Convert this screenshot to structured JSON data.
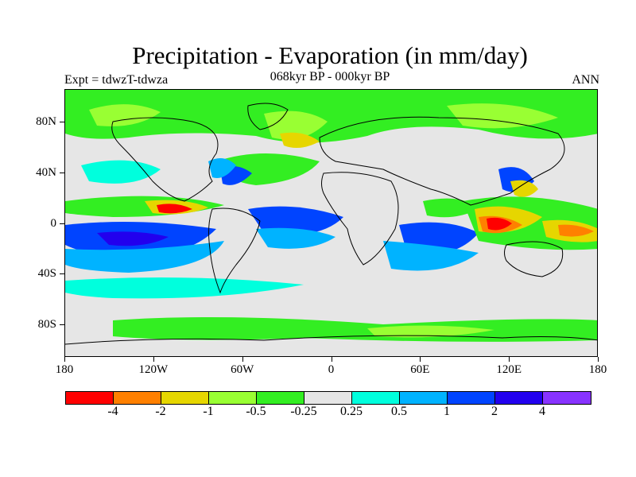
{
  "title": "Precipitation - Evaporation (in mm/day)",
  "subtitle": "068kyr BP - 000kyr BP",
  "experiment_label": "Expt = tdwzT-tdwza",
  "season": "ANN",
  "lat_axis": [
    {
      "text": "80N",
      "lat": 70
    },
    {
      "text": "40N",
      "lat": 35
    },
    {
      "text": "0",
      "lat": 0
    },
    {
      "text": "40S",
      "lat": -35
    },
    {
      "text": "80S",
      "lat": -70
    }
  ],
  "lon_axis": [
    {
      "text": "180",
      "lon": -180
    },
    {
      "text": "120W",
      "lon": -120
    },
    {
      "text": "60W",
      "lon": -60
    },
    {
      "text": "0",
      "lon": 0
    },
    {
      "text": "60E",
      "lon": 60
    },
    {
      "text": "120E",
      "lon": 120
    },
    {
      "text": "180",
      "lon": 180
    }
  ],
  "colorbar": {
    "colors": [
      "#ff0000",
      "#ff8000",
      "#e6d600",
      "#99ff33",
      "#33ee22",
      "#e6e6e6",
      "#00ffdd",
      "#00b3ff",
      "#0044ff",
      "#2200ee",
      "#8833ff"
    ],
    "labels": [
      "-4",
      "-2",
      "-1",
      "-0.5",
      "-0.25",
      "0.25",
      "0.5",
      "1",
      "2",
      "4"
    ]
  },
  "colors": {
    "background": "#e6e6e6",
    "coastline": "#000000"
  }
}
